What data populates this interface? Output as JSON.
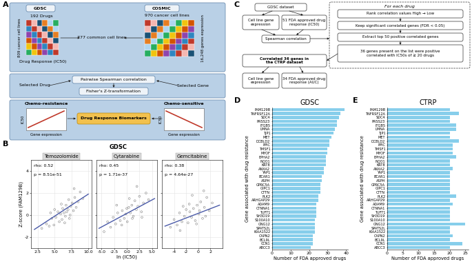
{
  "panel_labels": [
    "A",
    "B",
    "C",
    "D",
    "E"
  ],
  "diagram_A": {
    "GDSC": {
      "title": "GDSC",
      "drugs": "192 Drugs",
      "cell_lines": "809 cancer cell lines",
      "response": "Drug Response (IC50)"
    },
    "COSMIC": {
      "title": "COSMIC",
      "cell_lines": "970 cancer cell lines",
      "genes": "16,248 genes expression"
    },
    "common": "777 common cell lines",
    "correlation": "Pairwise Spearman correlation",
    "transform": "Fisher's Z-transformation",
    "selected_drug": "Selected Drug",
    "selected_gene": "Selected Gene",
    "resistance": {
      "title": "Chemo-resistance",
      "y_label": "IC50",
      "x_label": "Gene expression"
    },
    "sensitive": {
      "title": "Chemo-sensitive",
      "y_label": "IC50",
      "x_label": "Gene expression"
    },
    "biomarkers": "Drug Response Biomarkers"
  },
  "panel_B_title": "GDSC",
  "diagram_C": {
    "source": "GDSC dataset",
    "inputs": [
      "Cell line gene expression",
      "51 FDA approved drug response (IC50)"
    ],
    "method": "Spearman correlation",
    "loop": {
      "title": "For each drug",
      "steps": [
        "Rank correlation values High → Low",
        "Keep significant correlated genes (FDR < 0.05)",
        "Extract top 50 positive correlated genes",
        "36 genes present on the list were positive correlated with IC50s of ≥ 20 drugs"
      ]
    },
    "validation": "Correlated 36 genes in the CTRP dataset",
    "validation_inputs": [
      "Cell line gene expression",
      "34 FDA approved drug response (AUC)"
    ]
  },
  "chart_data": [
    {
      "type": "scatter",
      "title": "Temozolomide",
      "y_label": "Z-score (FAM129B)",
      "annotations": [
        "rho: 0.52",
        "p = 8.51e-51"
      ],
      "xlim": [
        1.5,
        10.5
      ],
      "xticks": [
        2.5,
        5.0,
        7.5,
        10.0
      ],
      "ylim": [
        -3,
        5
      ],
      "yticks": [
        -2,
        0,
        2,
        4
      ],
      "grid": true,
      "series": [
        {
          "type": "scatter",
          "color": "#808080",
          "x": [
            3.1,
            3.8,
            4.2,
            4.6,
            4.9,
            5.2,
            5.5,
            5.7,
            5.9,
            6.1,
            6.2,
            6.4,
            6.5,
            6.7,
            6.8,
            7.0,
            7.1,
            7.3,
            7.4,
            7.6,
            7.8,
            8.0,
            8.2,
            8.5,
            8.8,
            9.2,
            5.0,
            6.0,
            7.2,
            6.6,
            4.4,
            7.9
          ],
          "values": [
            -1.2,
            -0.8,
            -1.0,
            -0.3,
            -0.9,
            -0.2,
            0.3,
            -0.6,
            0.1,
            -0.4,
            0.6,
            0.2,
            -0.7,
            0.9,
            0.3,
            0.5,
            1.4,
            0.0,
            0.8,
            1.1,
            0.4,
            1.6,
            0.7,
            1.2,
            2.1,
            1.5,
            0.5,
            1.0,
            -0.3,
            -0.1,
            0.2,
            2.4
          ]
        },
        {
          "type": "line",
          "color": "#4a5aa8",
          "x": [
            2.0,
            10.0
          ],
          "values": [
            -1.3,
            1.9
          ]
        }
      ]
    },
    {
      "type": "scatter",
      "title": "Cytarabine",
      "x_label": "ln (IC50)",
      "tick_labels": "x",
      "annotations": [
        "rho: 0.45",
        "p = 1.71e-37"
      ],
      "xlim": [
        -6,
        6
      ],
      "xticks": [
        -5.0,
        -2.5,
        0.0,
        2.5,
        5.0
      ],
      "ylim": [
        -3,
        5
      ],
      "yticks": [
        -2,
        0,
        2,
        4
      ],
      "grid": true,
      "series": [
        {
          "type": "scatter",
          "color": "#808080",
          "x": [
            -4.5,
            -3.8,
            -3.2,
            -2.7,
            -2.2,
            -1.8,
            -1.3,
            -0.9,
            -0.5,
            -0.2,
            0.1,
            0.4,
            0.7,
            1.0,
            1.3,
            1.6,
            1.9,
            2.2,
            2.5,
            2.9,
            3.3,
            3.8,
            4.3,
            -1.0,
            0.0,
            1.1,
            2.0,
            -2.0,
            3.0,
            0.5
          ],
          "values": [
            -1.5,
            -0.6,
            -1.1,
            -0.2,
            -0.8,
            0.2,
            -0.5,
            0.4,
            -0.3,
            0.1,
            -0.6,
            0.7,
            0.2,
            0.9,
            -0.1,
            1.3,
            0.5,
            0.8,
            1.7,
            0.3,
            1.1,
            2.0,
            1.4,
            -0.9,
            0.6,
            -0.3,
            2.6,
            0.9,
            -0.2,
            1.5
          ]
        },
        {
          "type": "line",
          "color": "#4a5aa8",
          "x": [
            -5.5,
            5.5
          ],
          "values": [
            -1.2,
            1.5
          ]
        }
      ]
    },
    {
      "type": "scatter",
      "title": "Gemcitabine",
      "tick_labels": "x",
      "annotations": [
        "rho: 0.38",
        "p = 4.64e-27"
      ],
      "xlim": [
        -6,
        4
      ],
      "xticks": [
        -4,
        -2,
        0,
        2
      ],
      "ylim": [
        -3,
        5
      ],
      "yticks": [
        -2,
        0,
        2,
        4
      ],
      "grid": true,
      "series": [
        {
          "type": "scatter",
          "color": "#808080",
          "x": [
            -4.6,
            -4.0,
            -3.5,
            -3.1,
            -2.7,
            -2.3,
            -2.0,
            -1.7,
            -1.4,
            -1.1,
            -0.8,
            -0.5,
            -0.2,
            0.1,
            0.4,
            0.7,
            1.0,
            1.4,
            1.8,
            2.3,
            -3.0,
            -1.5,
            -0.3,
            0.9,
            -2.5,
            0.2,
            1.2,
            -1.0
          ],
          "values": [
            -1.1,
            -0.4,
            -0.9,
            0.2,
            -0.6,
            -0.1,
            0.5,
            -0.7,
            0.3,
            -0.2,
            0.6,
            -0.5,
            0.9,
            0.1,
            1.2,
            -0.3,
            0.7,
            1.6,
            0.4,
            1.1,
            -1.4,
            1.0,
            -0.8,
            2.2,
            0.8,
            0.4,
            -0.1,
            1.8
          ]
        },
        {
          "type": "line",
          "color": "#4a5aa8",
          "x": [
            -5.5,
            3.5
          ],
          "values": [
            -1.0,
            0.9
          ]
        }
      ]
    },
    {
      "type": "bar",
      "orientation": "horizontal",
      "title": "GDSC",
      "x_label": "Number of FDA approved drugs",
      "y_label": "Gene associated with drug resistance",
      "categories": [
        "FAM129B",
        "TNFRSF12A",
        "SDC4",
        "PRSS23",
        "ITGB5",
        "LMNA",
        "TJP1",
        "MET",
        "DCBLD2",
        "PPIC",
        "TMSF1",
        "MYOF",
        "EPHA2",
        "NQO1",
        "KRT8",
        "ANXA2",
        "YAP1",
        "BCAR1",
        "ASPH",
        "GPRC5A",
        "GIPC1",
        "CTTN",
        "PLK2",
        "ARHGAP29",
        "ADAM9",
        "CTNNA1",
        "TUFT1",
        "SH3D19",
        "S100A10",
        "GNG12",
        "SPATS2L",
        "KIAA1522",
        "CAPN2",
        "BCL9L",
        "CCN1",
        "ABCC3"
      ],
      "values": [
        39,
        37,
        36,
        35,
        35,
        34,
        33,
        32,
        31,
        31,
        30,
        30,
        29,
        29,
        29,
        28,
        28,
        27,
        27,
        26,
        26,
        26,
        25,
        25,
        24,
        24,
        24,
        24,
        23,
        23,
        23,
        23,
        22,
        22,
        22,
        21
      ],
      "color": "#87ceeb",
      "xlim": [
        0,
        41
      ],
      "xticks": [
        0,
        10,
        20,
        30,
        40
      ]
    },
    {
      "type": "bar",
      "orientation": "horizontal",
      "title": "CTRP",
      "x_label": "Number of FDA approved drugs",
      "y_label": "Gene associated with drug resistance",
      "categories": [
        "FAM129B",
        "TNFRSF12A",
        "SDC4",
        "PRSS23",
        "ITGB5",
        "LMNA",
        "TJP1",
        "MET",
        "DCBLD2",
        "PPIC",
        "TMSF1",
        "MYOF",
        "EPHA2",
        "NQO1",
        "KRT8",
        "ANXA2",
        "YAP1",
        "BCAR1",
        "ASPH",
        "GPRC5A",
        "GIPC1",
        "CTTN",
        "PLK2",
        "ARHGAP29",
        "ADAM9",
        "CTNNA1",
        "TUFT1",
        "SH3D19",
        "S100A10",
        "GNG12",
        "SPATS2L",
        "KIAA1522",
        "CAPN2",
        "BCL9L",
        "CCN1",
        "ABCC3"
      ],
      "values": [
        20,
        23,
        20,
        20,
        22,
        22,
        20,
        20,
        23,
        21,
        21,
        21,
        22,
        20,
        20,
        21,
        20,
        20,
        20,
        20,
        20,
        20,
        22,
        20,
        21,
        20,
        20,
        20,
        20,
        25,
        20,
        20,
        21,
        20,
        24,
        20
      ],
      "color": "#87ceeb",
      "xlim": [
        0,
        26
      ],
      "xticks": [
        0,
        5,
        10,
        15,
        20,
        25
      ]
    }
  ]
}
